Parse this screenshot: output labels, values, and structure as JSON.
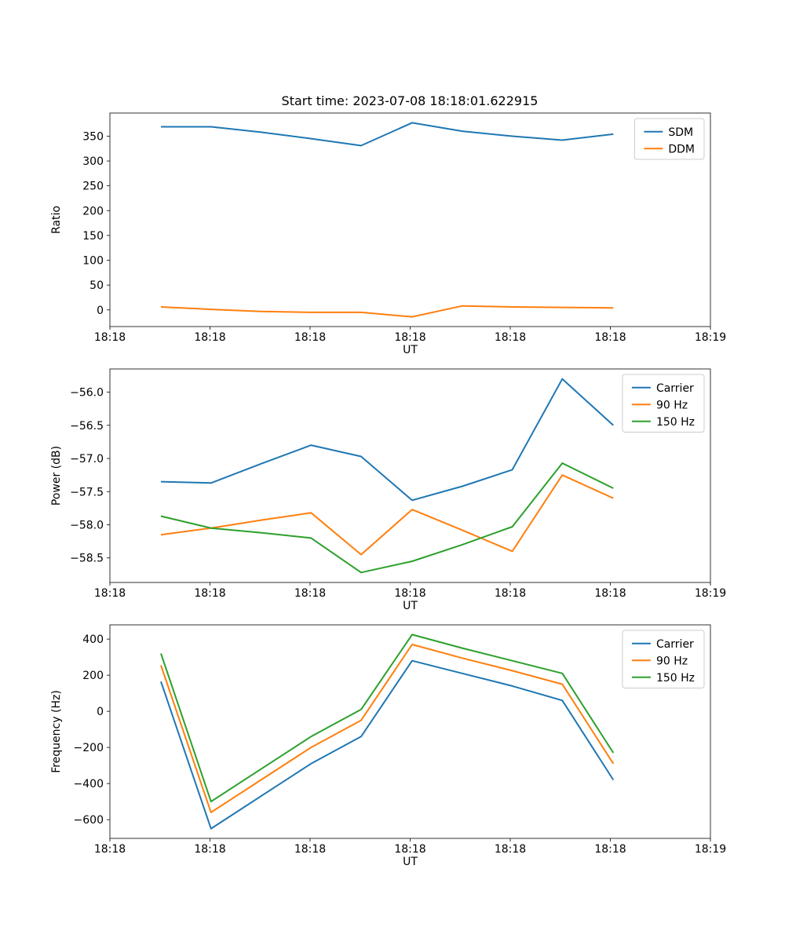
{
  "chart_data": [
    {
      "type": "line",
      "title": "Start time: 2023-07-08 18:18:01.622915",
      "xlabel": "UT",
      "ylabel": "Ratio",
      "xlim": [
        0,
        60
      ],
      "ylim": [
        -33.6,
        396.6
      ],
      "xticks": [
        0,
        10,
        20,
        30,
        40,
        50,
        60
      ],
      "xticklabels": [
        "18:18",
        "18:18",
        "18:18",
        "18:18",
        "18:18",
        "18:18",
        "18:19"
      ],
      "yticks": [
        0,
        50,
        100,
        150,
        200,
        250,
        300,
        350
      ],
      "yticklabels": [
        "0",
        "50",
        "100",
        "150",
        "200",
        "250",
        "300",
        "350"
      ],
      "grid": false,
      "legend": {
        "position": "upper-right",
        "entries": [
          "SDM",
          "DDM"
        ]
      },
      "x": [
        5.1,
        10.1,
        15.1,
        20.1,
        25.1,
        30.2,
        35.2,
        40.2,
        45.2,
        50.3
      ],
      "series": [
        {
          "name": "SDM",
          "color": "#1f77b4",
          "values": [
            369,
            369,
            358,
            345,
            331,
            377,
            360,
            350,
            342,
            354
          ]
        },
        {
          "name": "DDM",
          "color": "#ff7f0e",
          "values": [
            6,
            1,
            -3,
            -5,
            -5,
            -14,
            8,
            6,
            5,
            4
          ]
        }
      ]
    },
    {
      "type": "line",
      "xlabel": "UT",
      "ylabel": "Power (dB)",
      "xlim": [
        0,
        60
      ],
      "ylim": [
        -58.87,
        -55.65
      ],
      "xticks": [
        0,
        10,
        20,
        30,
        40,
        50,
        60
      ],
      "xticklabels": [
        "18:18",
        "18:18",
        "18:18",
        "18:18",
        "18:18",
        "18:18",
        "18:19"
      ],
      "yticks": [
        -58.5,
        -58.0,
        -57.5,
        -57.0,
        -56.5,
        -56.0
      ],
      "yticklabels": [
        "−58.5",
        "−58.0",
        "−57.5",
        "−57.0",
        "−56.5",
        "−56.0"
      ],
      "grid": false,
      "legend": {
        "position": "upper-right",
        "entries": [
          "Carrier",
          "90 Hz",
          "150 Hz"
        ]
      },
      "x": [
        5.1,
        10.1,
        15.1,
        20.1,
        25.1,
        30.2,
        35.2,
        40.2,
        45.2,
        50.3
      ],
      "series": [
        {
          "name": "Carrier",
          "color": "#1f77b4",
          "values": [
            -57.35,
            -57.37,
            -57.08,
            -56.8,
            -56.97,
            -57.63,
            -57.42,
            -57.17,
            -55.8,
            -56.5
          ]
        },
        {
          "name": "90 Hz",
          "color": "#ff7f0e",
          "values": [
            -58.15,
            -58.05,
            -57.93,
            -57.82,
            -58.45,
            -57.77,
            -58.08,
            -58.4,
            -57.25,
            -57.6
          ]
        },
        {
          "name": "150 Hz",
          "color": "#2ca02c",
          "values": [
            -57.87,
            -58.05,
            -58.12,
            -58.2,
            -58.72,
            -58.55,
            -58.3,
            -58.03,
            -57.07,
            -57.45
          ]
        }
      ]
    },
    {
      "type": "line",
      "xlabel": "UT",
      "ylabel": "Frequency (Hz)",
      "xlim": [
        0,
        60
      ],
      "ylim": [
        -703.8,
        478.8
      ],
      "xticks": [
        0,
        10,
        20,
        30,
        40,
        50,
        60
      ],
      "xticklabels": [
        "18:18",
        "18:18",
        "18:18",
        "18:18",
        "18:18",
        "18:18",
        "18:19"
      ],
      "yticks": [
        -600,
        -400,
        -200,
        0,
        200,
        400
      ],
      "yticklabels": [
        "−600",
        "−400",
        "−200",
        "0",
        "200",
        "400"
      ],
      "grid": false,
      "legend": {
        "position": "upper-right",
        "entries": [
          "Carrier",
          "90 Hz",
          "150 Hz"
        ]
      },
      "x": [
        5.1,
        10.1,
        15.1,
        20.1,
        25.1,
        30.2,
        35.2,
        40.2,
        45.2,
        50.3
      ],
      "series": [
        {
          "name": "Carrier",
          "color": "#1f77b4",
          "values": [
            165,
            -650,
            -470,
            -290,
            -140,
            280,
            210,
            140,
            60,
            -380
          ]
        },
        {
          "name": "90 Hz",
          "color": "#ff7f0e",
          "values": [
            255,
            -560,
            -380,
            -200,
            -50,
            370,
            295,
            225,
            150,
            -290
          ]
        },
        {
          "name": "150 Hz",
          "color": "#2ca02c",
          "values": [
            320,
            -500,
            -320,
            -140,
            10,
            425,
            350,
            280,
            210,
            -230
          ]
        }
      ]
    }
  ]
}
